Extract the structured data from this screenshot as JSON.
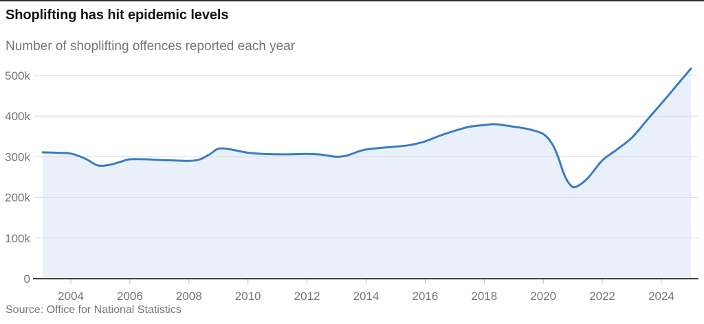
{
  "header": {
    "title": "Shoplifting has hit epidemic levels",
    "subtitle": "Number of shoplifting offences reported each year"
  },
  "footer": {
    "source": "Source: Office for National Statistics"
  },
  "colors": {
    "line": "#3a7cc4",
    "area_fill": "#e9f0f9",
    "gridline": "#d9d9d9",
    "axis": "#262626",
    "tick": "#b5b5b5",
    "label_text": "#757575"
  },
  "chart_data": {
    "type": "area",
    "title": "Shoplifting has hit epidemic levels",
    "subtitle": "Number of shoplifting offences reported each year",
    "source": "Source: Office for National Statistics",
    "xlabel": "",
    "ylabel": "Number of shoplifting offences reported each year",
    "xlim": [
      2003,
      2025.2
    ],
    "ylim": [
      0,
      530000
    ],
    "grid": "horizontal",
    "legend": "none",
    "x_ticks": [
      2004,
      2006,
      2008,
      2010,
      2012,
      2014,
      2016,
      2018,
      2020,
      2022,
      2024
    ],
    "y_ticks": [
      {
        "value": 0,
        "label": "0"
      },
      {
        "value": 100000,
        "label": "100k"
      },
      {
        "value": 200000,
        "label": "200k"
      },
      {
        "value": 300000,
        "label": "300k"
      },
      {
        "value": 400000,
        "label": "400k"
      },
      {
        "value": 500000,
        "label": "500k"
      }
    ],
    "series": [
      {
        "name": "Shoplifting offences",
        "points": [
          [
            2003.05,
            311000
          ],
          [
            2003.5,
            310000
          ],
          [
            2004,
            308000
          ],
          [
            2004.5,
            295000
          ],
          [
            2004.9,
            279000
          ],
          [
            2005.3,
            280000
          ],
          [
            2005.7,
            288000
          ],
          [
            2006,
            294000
          ],
          [
            2006.5,
            294000
          ],
          [
            2007,
            292000
          ],
          [
            2007.5,
            291000
          ],
          [
            2008,
            290000
          ],
          [
            2008.35,
            293000
          ],
          [
            2008.7,
            306000
          ],
          [
            2009,
            320000
          ],
          [
            2009.35,
            319000
          ],
          [
            2009.7,
            314000
          ],
          [
            2010,
            310000
          ],
          [
            2010.5,
            307000
          ],
          [
            2011,
            306000
          ],
          [
            2011.5,
            306000
          ],
          [
            2012,
            307000
          ],
          [
            2012.5,
            305000
          ],
          [
            2013,
            300000
          ],
          [
            2013.35,
            303000
          ],
          [
            2013.7,
            312000
          ],
          [
            2014,
            318000
          ],
          [
            2014.5,
            322000
          ],
          [
            2015,
            325000
          ],
          [
            2015.5,
            329000
          ],
          [
            2016,
            338000
          ],
          [
            2016.5,
            352000
          ],
          [
            2017,
            364000
          ],
          [
            2017.5,
            374000
          ],
          [
            2018,
            378000
          ],
          [
            2018.4,
            380000
          ],
          [
            2019,
            374000
          ],
          [
            2019.5,
            368000
          ],
          [
            2020,
            356000
          ],
          [
            2020.3,
            332000
          ],
          [
            2020.5,
            300000
          ],
          [
            2020.7,
            258000
          ],
          [
            2020.9,
            232000
          ],
          [
            2021.1,
            226000
          ],
          [
            2021.5,
            247000
          ],
          [
            2022,
            291000
          ],
          [
            2022.5,
            318000
          ],
          [
            2023,
            347000
          ],
          [
            2023.5,
            389000
          ],
          [
            2024,
            431000
          ],
          [
            2024.5,
            474000
          ],
          [
            2025,
            517000
          ]
        ]
      }
    ]
  }
}
